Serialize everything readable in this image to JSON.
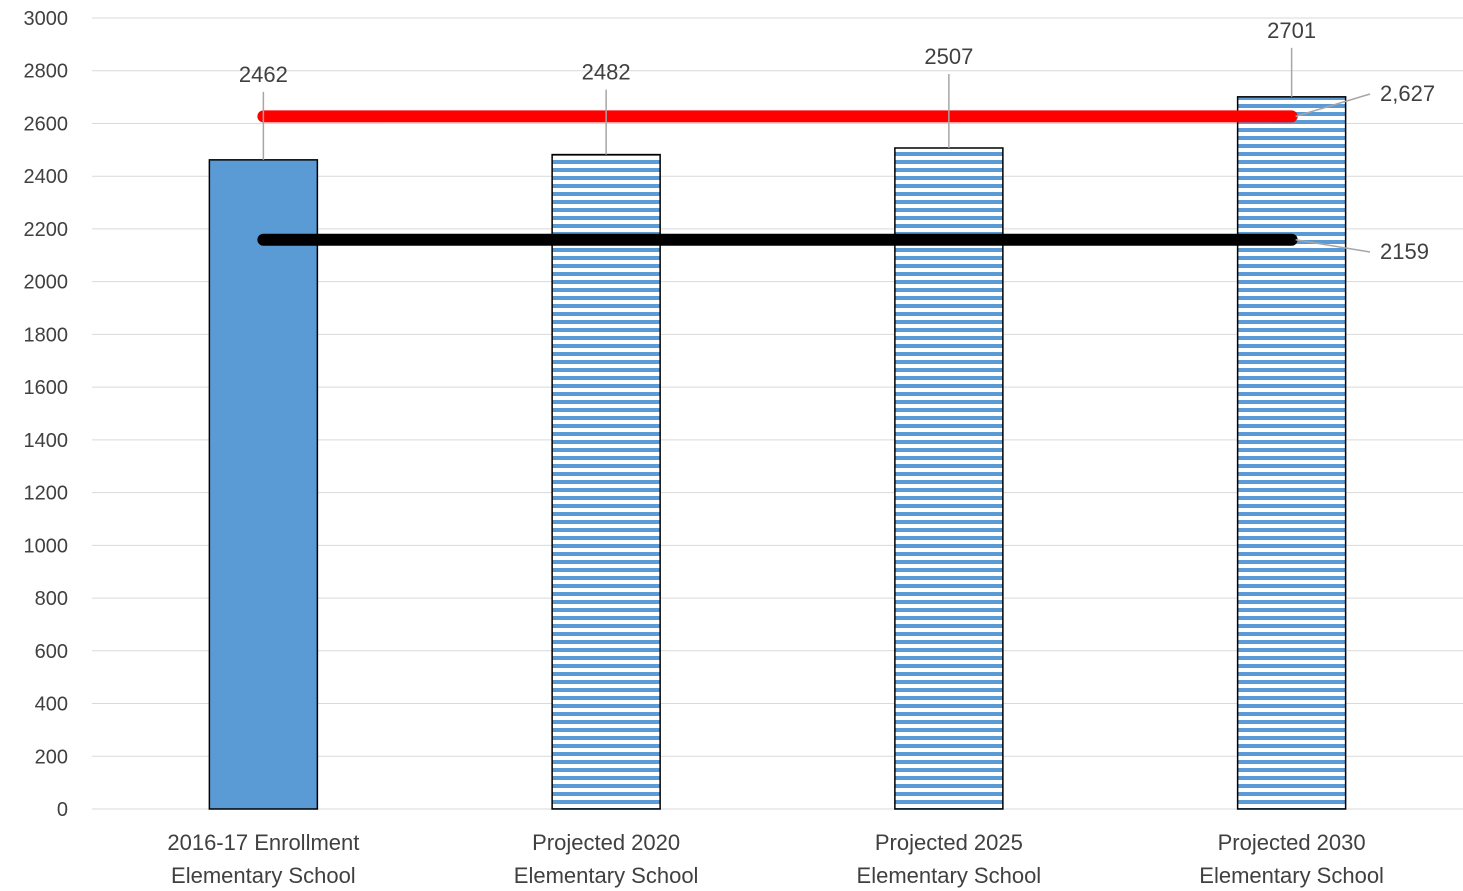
{
  "chart_data": {
    "type": "bar",
    "categories": [
      [
        "2016-17 Enrollment",
        "Elementary School"
      ],
      [
        "Projected 2020",
        "Elementary School"
      ],
      [
        "Projected 2025",
        "Elementary School"
      ],
      [
        "Projected 2030",
        "Elementary School"
      ]
    ],
    "series": [
      {
        "values": [
          2462,
          2482,
          2507,
          2701
        ],
        "labels": [
          "2462",
          "2482",
          "2507",
          "2701"
        ],
        "fill": [
          "solid",
          "striped",
          "striped",
          "striped"
        ]
      }
    ],
    "reference_lines": [
      {
        "value": 2627,
        "label": "2,627",
        "color": "#ff0000"
      },
      {
        "value": 2159,
        "label": "2159",
        "color": "#000000"
      }
    ],
    "ylim": [
      0,
      3000
    ],
    "yticks": [
      0,
      200,
      400,
      600,
      800,
      1000,
      1200,
      1400,
      1600,
      1800,
      2000,
      2200,
      2400,
      2600,
      2800,
      3000
    ],
    "grid": true,
    "legend": "none",
    "title": "",
    "xlabel": "",
    "ylabel": "",
    "colors": {
      "bar": "#5b9bd5",
      "grid": "#d9d9d9",
      "text": "#404040"
    }
  }
}
